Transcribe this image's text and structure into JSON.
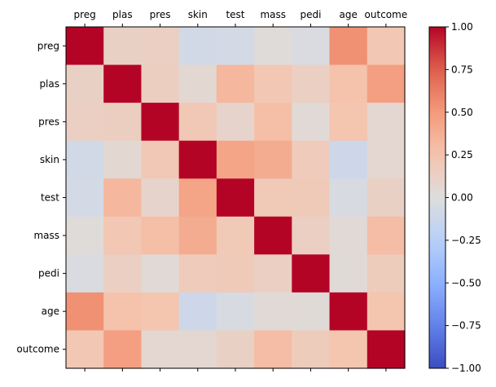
{
  "chart_data": {
    "type": "heatmap",
    "title": "",
    "xlabel": "",
    "ylabel": "",
    "x_categories": [
      "preg",
      "plas",
      "pres",
      "skin",
      "test",
      "mass",
      "pedi",
      "age",
      "outcome"
    ],
    "y_categories": [
      "preg",
      "plas",
      "pres",
      "skin",
      "test",
      "mass",
      "pedi",
      "age",
      "outcome"
    ],
    "x_tick_position": "top",
    "colormap": "coolwarm",
    "vmin": -1.0,
    "vmax": 1.0,
    "colorbar_ticks": [
      -1.0,
      -0.75,
      -0.5,
      -0.25,
      0.0,
      0.25,
      0.5,
      0.75,
      1.0
    ],
    "colorbar_tick_labels": [
      "−1.00",
      "−0.75",
      "−0.50",
      "−0.25",
      "0.00",
      "0.25",
      "0.50",
      "0.75",
      "1.00"
    ],
    "grid": false,
    "values": [
      [
        1.0,
        0.13,
        0.14,
        -0.08,
        -0.07,
        0.02,
        -0.03,
        0.54,
        0.22
      ],
      [
        0.13,
        1.0,
        0.15,
        0.06,
        0.33,
        0.22,
        0.14,
        0.26,
        0.47
      ],
      [
        0.14,
        0.15,
        1.0,
        0.21,
        0.09,
        0.28,
        0.04,
        0.24,
        0.07
      ],
      [
        -0.08,
        0.06,
        0.21,
        1.0,
        0.44,
        0.39,
        0.18,
        -0.11,
        0.07
      ],
      [
        -0.07,
        0.33,
        0.09,
        0.44,
        1.0,
        0.2,
        0.19,
        -0.04,
        0.13
      ],
      [
        0.02,
        0.22,
        0.28,
        0.39,
        0.2,
        1.0,
        0.14,
        0.04,
        0.29
      ],
      [
        -0.03,
        0.14,
        0.04,
        0.18,
        0.19,
        0.14,
        1.0,
        0.03,
        0.17
      ],
      [
        0.54,
        0.26,
        0.24,
        -0.11,
        -0.04,
        0.04,
        0.03,
        1.0,
        0.24
      ],
      [
        0.22,
        0.47,
        0.07,
        0.07,
        0.13,
        0.29,
        0.17,
        0.24,
        1.0
      ]
    ]
  }
}
